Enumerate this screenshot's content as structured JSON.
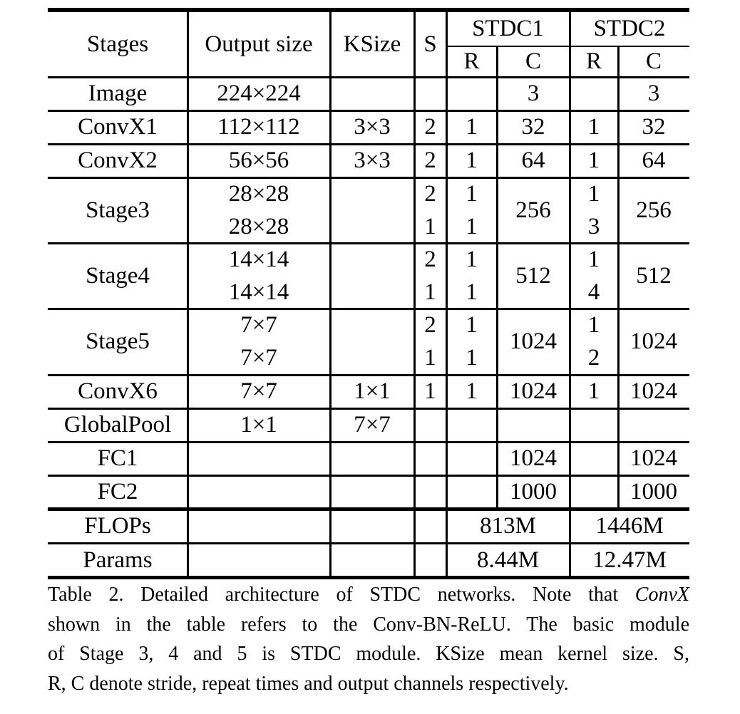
{
  "table": {
    "header": {
      "stages": "Stages",
      "output_size": "Output size",
      "ksize": "KSize",
      "s": "S",
      "stdc1": "STDC1",
      "stdc2": "STDC2",
      "r1": "R",
      "c1": "C",
      "r2": "R",
      "c2": "C"
    },
    "rows": [
      {
        "stage": "Image",
        "output": [
          "224×224"
        ],
        "ksize": "",
        "s": [],
        "r1": [],
        "c1": "3",
        "r2": [],
        "c2": "3"
      },
      {
        "stage": "ConvX1",
        "output": [
          "112×112"
        ],
        "ksize": "3×3",
        "s": [
          "2"
        ],
        "r1": [
          "1"
        ],
        "c1": "32",
        "r2": [
          "1"
        ],
        "c2": "32"
      },
      {
        "stage": "ConvX2",
        "output": [
          "56×56"
        ],
        "ksize": "3×3",
        "s": [
          "2"
        ],
        "r1": [
          "1"
        ],
        "c1": "64",
        "r2": [
          "1"
        ],
        "c2": "64"
      },
      {
        "stage": "Stage3",
        "output": [
          "28×28",
          "28×28"
        ],
        "ksize": "",
        "s": [
          "2",
          "1"
        ],
        "r1": [
          "1",
          "1"
        ],
        "c1": "256",
        "r2": [
          "1",
          "3"
        ],
        "c2": "256"
      },
      {
        "stage": "Stage4",
        "output": [
          "14×14",
          "14×14"
        ],
        "ksize": "",
        "s": [
          "2",
          "1"
        ],
        "r1": [
          "1",
          "1"
        ],
        "c1": "512",
        "r2": [
          "1",
          "4"
        ],
        "c2": "512"
      },
      {
        "stage": "Stage5",
        "output": [
          "7×7",
          "7×7"
        ],
        "ksize": "",
        "s": [
          "2",
          "1"
        ],
        "r1": [
          "1",
          "1"
        ],
        "c1": "1024",
        "r2": [
          "1",
          "2"
        ],
        "c2": "1024"
      },
      {
        "stage": "ConvX6",
        "output": [
          "7×7"
        ],
        "ksize": "1×1",
        "s": [
          "1"
        ],
        "r1": [
          "1"
        ],
        "c1": "1024",
        "r2": [
          "1"
        ],
        "c2": "1024"
      },
      {
        "stage": "GlobalPool",
        "output": [
          "1×1"
        ],
        "ksize": "7×7",
        "s": [],
        "r1": [],
        "c1": "",
        "r2": [],
        "c2": ""
      },
      {
        "stage": "FC1",
        "output": [],
        "ksize": "",
        "s": [],
        "r1": [],
        "c1": "1024",
        "r2": [],
        "c2": "1024"
      },
      {
        "stage": "FC2",
        "output": [],
        "ksize": "",
        "s": [],
        "r1": [],
        "c1": "1000",
        "r2": [],
        "c2": "1000"
      }
    ],
    "summary": [
      {
        "label": "FLOPs",
        "stdc1": "813M",
        "stdc2": "1446M"
      },
      {
        "label": "Params",
        "stdc1": "8.44M",
        "stdc2": "12.47M"
      }
    ]
  },
  "caption": {
    "line1_pre": "Table 2. Detailed architecture of STDC networks. Note that ",
    "line1_italic": "ConvX",
    "line2": "shown in the table refers to the Conv-BN-ReLU. The basic module",
    "line3": "of Stage 3, 4 and 5 is STDC module.  KSize mean kernel size.  S,",
    "line4": "R, C denote stride, repeat times and output channels respectively."
  },
  "chart_data": {
    "type": "table",
    "title": "Table 2. Detailed architecture of STDC networks",
    "columns": [
      "Stages",
      "Output size",
      "KSize",
      "S",
      "STDC1 R",
      "STDC1 C",
      "STDC2 R",
      "STDC2 C"
    ],
    "rows": [
      [
        "Image",
        "224×224",
        "",
        "",
        "",
        "3",
        "",
        "3"
      ],
      [
        "ConvX1",
        "112×112",
        "3×3",
        "2",
        "1",
        "32",
        "1",
        "32"
      ],
      [
        "ConvX2",
        "56×56",
        "3×3",
        "2",
        "1",
        "64",
        "1",
        "64"
      ],
      [
        "Stage3",
        "28×28 / 28×28",
        "",
        "2 / 1",
        "1 / 1",
        "256",
        "1 / 3",
        "256"
      ],
      [
        "Stage4",
        "14×14 / 14×14",
        "",
        "2 / 1",
        "1 / 1",
        "512",
        "1 / 4",
        "512"
      ],
      [
        "Stage5",
        "7×7 / 7×7",
        "",
        "2 / 1",
        "1 / 1",
        "1024",
        "1 / 2",
        "1024"
      ],
      [
        "ConvX6",
        "7×7",
        "1×1",
        "1",
        "1",
        "1024",
        "1",
        "1024"
      ],
      [
        "GlobalPool",
        "1×1",
        "7×7",
        "",
        "",
        "",
        "",
        ""
      ],
      [
        "FC1",
        "",
        "",
        "",
        "",
        "1024",
        "",
        "1024"
      ],
      [
        "FC2",
        "",
        "",
        "",
        "",
        "1000",
        "",
        "1000"
      ],
      [
        "FLOPs",
        "",
        "",
        "",
        "813M",
        "",
        "1446M",
        ""
      ],
      [
        "Params",
        "",
        "",
        "",
        "8.44M",
        "",
        "12.47M",
        ""
      ]
    ]
  }
}
